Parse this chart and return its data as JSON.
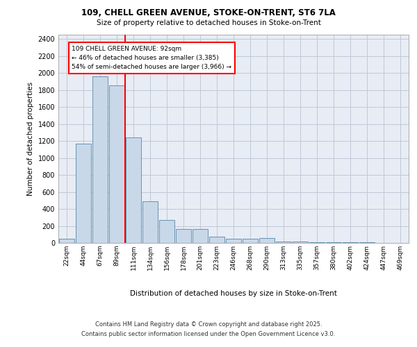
{
  "title_line1": "109, CHELL GREEN AVENUE, STOKE-ON-TRENT, ST6 7LA",
  "title_line2": "Size of property relative to detached houses in Stoke-on-Trent",
  "xlabel": "Distribution of detached houses by size in Stoke-on-Trent",
  "ylabel": "Number of detached properties",
  "categories": [
    "22sqm",
    "44sqm",
    "67sqm",
    "89sqm",
    "111sqm",
    "134sqm",
    "156sqm",
    "178sqm",
    "201sqm",
    "223sqm",
    "246sqm",
    "268sqm",
    "290sqm",
    "313sqm",
    "335sqm",
    "357sqm",
    "380sqm",
    "402sqm",
    "424sqm",
    "447sqm",
    "469sqm"
  ],
  "values": [
    50,
    1170,
    1960,
    1850,
    1240,
    490,
    270,
    160,
    160,
    75,
    45,
    45,
    55,
    20,
    20,
    10,
    10,
    5,
    5,
    3,
    2
  ],
  "bar_color": "#c8d8e8",
  "bar_edge_color": "#5588aa",
  "grid_color": "#c0c8d8",
  "background_color": "#e8ecf4",
  "annotation_text": "109 CHELL GREEN AVENUE: 92sqm\n← 46% of detached houses are smaller (3,385)\n54% of semi-detached houses are larger (3,966) →",
  "vline_x_index": 3.5,
  "footer_line1": "Contains HM Land Registry data © Crown copyright and database right 2025.",
  "footer_line2": "Contains public sector information licensed under the Open Government Licence v3.0.",
  "ylim": [
    0,
    2450
  ],
  "yticks": [
    0,
    200,
    400,
    600,
    800,
    1000,
    1200,
    1400,
    1600,
    1800,
    2000,
    2200,
    2400
  ]
}
